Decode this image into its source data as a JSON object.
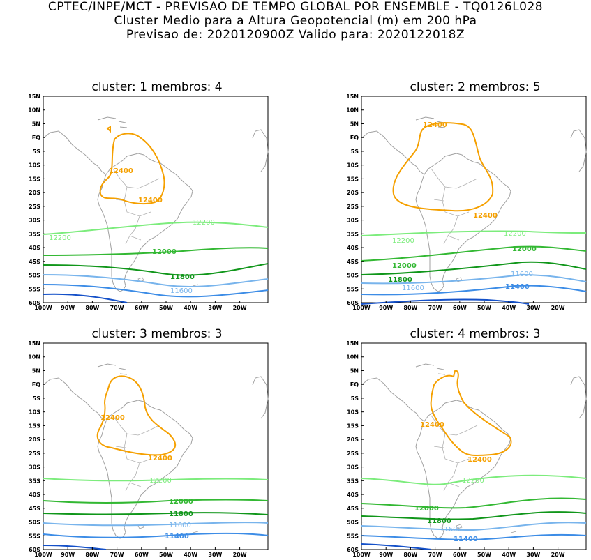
{
  "header": {
    "line1": "CPTEC/INPE/MCT - PREVISAO DE TEMPO GLOBAL POR ENSEMBLE - TQ0126L028",
    "line2": "Cluster Medio para a Altura Geopotencial (m) em 200 hPa",
    "line3": "Previsao de: 2020120900Z   Valido para: 2020122018Z"
  },
  "axes": {
    "lat_labels": [
      "15N",
      "10N",
      "5N",
      "EQ",
      "5S",
      "10S",
      "15S",
      "20S",
      "25S",
      "30S",
      "35S",
      "40S",
      "45S",
      "50S",
      "55S",
      "60S"
    ],
    "lon_labels": [
      "100W",
      "90W",
      "80W",
      "70W",
      "60W",
      "50W",
      "40W",
      "30W",
      "20W"
    ]
  },
  "colors": {
    "c12400": "#f5a000",
    "c12200": "#7cec7c",
    "c12000": "#33b833",
    "c11800": "#10961a",
    "c11600": "#78b4ec",
    "c11400": "#3c8ce6",
    "c11200": "#1450c8",
    "coast": "#a0a0a0"
  },
  "panels": [
    {
      "title": "cluster: 1   membros: 4",
      "labels": {
        "a": "12400",
        "b": "12400",
        "c": "12200",
        "d": "12200",
        "e": "12000",
        "f": "11800",
        "g": "11600"
      }
    },
    {
      "title": "cluster: 2   membros: 5",
      "labels": {
        "a": "12400",
        "b": "12400",
        "c": "12200",
        "d": "12200",
        "e": "12000",
        "f": "12000",
        "g": "11800",
        "h": "11600",
        "i": "11600",
        "j": "11400"
      }
    },
    {
      "title": "cluster: 3   membros: 3",
      "labels": {
        "a": "12400",
        "b": "12400",
        "c": "12200",
        "e": "12000",
        "f": "11800",
        "g": "11600",
        "h": "11400"
      }
    },
    {
      "title": "cluster: 4   membros: 3",
      "labels": {
        "a": "12400",
        "b": "12400",
        "c": "12200",
        "e": "12000",
        "f": "11800",
        "g": "11600",
        "h": "11400"
      }
    }
  ]
}
